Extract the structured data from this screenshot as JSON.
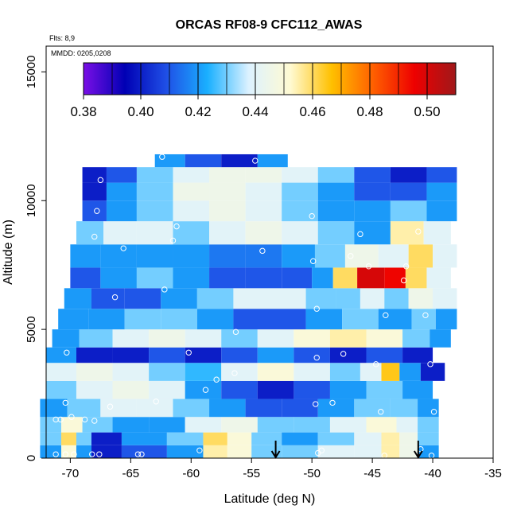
{
  "chart_data": {
    "type": "heatmap",
    "title": "ORCAS RF08-9 CFC112_AWAS",
    "xlabel": "Latitude (deg N)",
    "ylabel": "Altitude (m)",
    "notes": [
      "Flts: 8,9",
      "MMDD: 0205,0208"
    ],
    "xlim": [
      -72,
      -35
    ],
    "ylim": [
      0,
      16000
    ],
    "x_ticks": [
      -70,
      -65,
      -60,
      -55,
      -50,
      -45,
      -40,
      -35
    ],
    "x_tick_labels": [
      "-70",
      "-65",
      "-60",
      "-55",
      "-50",
      "-45",
      "-40",
      "-35"
    ],
    "y_ticks": [
      0,
      5000,
      10000,
      15000
    ],
    "y_tick_labels": [
      "0",
      "5000",
      "10000",
      "15000"
    ],
    "colorbar": {
      "min": 0.38,
      "max": 0.51,
      "ticks": [
        0.38,
        0.4,
        0.42,
        0.44,
        0.46,
        0.48,
        0.5
      ],
      "tick_labels": [
        "0.38",
        "0.40",
        "0.42",
        "0.44",
        "0.46",
        "0.48",
        "0.50"
      ],
      "colors": [
        "#7a0fe6",
        "#0000b4",
        "#1f4fe6",
        "#1ab0ff",
        "#ddf2ff",
        "#fffad2",
        "#ffc000",
        "#ff6000",
        "#ee0000",
        "#a0181a"
      ]
    },
    "arrows_lat": [
      -53,
      -41.2
    ],
    "heatmap_bands": [
      {
        "y0": 0,
        "y1": 500,
        "cells": [
          [
            -71.5,
            0.42
          ],
          [
            -70,
            0.45
          ],
          [
            -69,
            0.42
          ],
          [
            -67.5,
            0.4
          ],
          [
            -64,
            0.41
          ],
          [
            -60,
            0.42
          ],
          [
            -58,
            0.455
          ],
          [
            -56,
            0.45
          ],
          [
            -54,
            0.43
          ],
          [
            -51,
            0.43
          ],
          [
            -48,
            0.44
          ],
          [
            -45,
            0.44
          ],
          [
            -43.5,
            0.455
          ],
          [
            -42,
            0.445
          ],
          [
            -40.5,
            0.42
          ]
        ]
      },
      {
        "y0": 500,
        "y1": 1000,
        "cells": [
          [
            -71.5,
            0.43
          ],
          [
            -70,
            0.46
          ],
          [
            -69,
            0.43
          ],
          [
            -67.5,
            0.4
          ],
          [
            -64,
            0.42
          ],
          [
            -60,
            0.43
          ],
          [
            -58,
            0.46
          ],
          [
            -56,
            0.45
          ],
          [
            -54,
            0.43
          ],
          [
            -51,
            0.42
          ],
          [
            -48,
            0.43
          ],
          [
            -45,
            0.44
          ],
          [
            -43.5,
            0.455
          ],
          [
            -42,
            0.445
          ],
          [
            -40.5,
            0.43
          ]
        ]
      },
      {
        "y0": 1000,
        "y1": 1600,
        "cells": [
          [
            -71.5,
            0.43
          ],
          [
            -70,
            0.45
          ],
          [
            -68,
            0.43
          ],
          [
            -65,
            0.42
          ],
          [
            -62,
            0.42
          ],
          [
            -59,
            0.44
          ],
          [
            -56,
            0.445
          ],
          [
            -53,
            0.43
          ],
          [
            -50,
            0.43
          ],
          [
            -47,
            0.44
          ],
          [
            -44,
            0.45
          ],
          [
            -42,
            0.44
          ],
          [
            -40.5,
            0.43
          ]
        ]
      },
      {
        "y0": 1600,
        "y1": 2300,
        "cells": [
          [
            -71.5,
            0.42
          ],
          [
            -69,
            0.43
          ],
          [
            -66,
            0.44
          ],
          [
            -63,
            0.44
          ],
          [
            -60,
            0.43
          ],
          [
            -57,
            0.42
          ],
          [
            -54,
            0.41
          ],
          [
            -51,
            0.41
          ],
          [
            -48,
            0.42
          ],
          [
            -45,
            0.43
          ],
          [
            -42,
            0.43
          ],
          [
            -40.5,
            0.42
          ]
        ]
      },
      {
        "y0": 2300,
        "y1": 3000,
        "cells": [
          [
            -71,
            0.43
          ],
          [
            -68,
            0.44
          ],
          [
            -65,
            0.445
          ],
          [
            -62,
            0.44
          ],
          [
            -59,
            0.42
          ],
          [
            -56,
            0.41
          ],
          [
            -53,
            0.4
          ],
          [
            -50,
            0.41
          ],
          [
            -47,
            0.42
          ],
          [
            -44,
            0.43
          ],
          [
            -41,
            0.42
          ]
        ]
      },
      {
        "y0": 3000,
        "y1": 3700,
        "cells": [
          [
            -71,
            0.44
          ],
          [
            -68,
            0.445
          ],
          [
            -65,
            0.44
          ],
          [
            -62,
            0.43
          ],
          [
            -59,
            0.425
          ],
          [
            -56,
            0.44
          ],
          [
            -53,
            0.45
          ],
          [
            -50,
            0.44
          ],
          [
            -47,
            0.43
          ],
          [
            -45,
            0.44
          ],
          [
            -43.5,
            0.465
          ],
          [
            -42,
            0.42
          ],
          [
            -40,
            0.4
          ]
        ]
      },
      {
        "y0": 3700,
        "y1": 4300,
        "cells": [
          [
            -71,
            0.42
          ],
          [
            -68,
            0.4
          ],
          [
            -65,
            0.4
          ],
          [
            -62,
            0.41
          ],
          [
            -59,
            0.4
          ],
          [
            -56,
            0.41
          ],
          [
            -53,
            0.42
          ],
          [
            -50,
            0.41
          ],
          [
            -47,
            0.4
          ],
          [
            -44,
            0.41
          ],
          [
            -41,
            0.4
          ]
        ]
      },
      {
        "y0": 4300,
        "y1": 5000,
        "cells": [
          [
            -70.5,
            0.42
          ],
          [
            -68,
            0.43
          ],
          [
            -65,
            0.44
          ],
          [
            -62,
            0.445
          ],
          [
            -59,
            0.44
          ],
          [
            -56,
            0.43
          ],
          [
            -53,
            0.44
          ],
          [
            -50,
            0.45
          ],
          [
            -47,
            0.455
          ],
          [
            -44,
            0.45
          ],
          [
            -41,
            0.43
          ],
          [
            -39.5,
            0.42
          ]
        ]
      },
      {
        "y0": 5000,
        "y1": 5800,
        "cells": [
          [
            -70,
            0.42
          ],
          [
            -67,
            0.42
          ],
          [
            -64,
            0.43
          ],
          [
            -61,
            0.43
          ],
          [
            -58,
            0.42
          ],
          [
            -55,
            0.41
          ],
          [
            -52,
            0.41
          ],
          [
            -49,
            0.42
          ],
          [
            -46,
            0.43
          ],
          [
            -43,
            0.42
          ],
          [
            -40.5,
            0.43
          ],
          [
            -39,
            0.42
          ]
        ]
      },
      {
        "y0": 5800,
        "y1": 6600,
        "cells": [
          [
            -69.5,
            0.42
          ],
          [
            -67,
            0.41
          ],
          [
            -64,
            0.41
          ],
          [
            -61,
            0.42
          ],
          [
            -58,
            0.43
          ],
          [
            -55,
            0.44
          ],
          [
            -52,
            0.44
          ],
          [
            -49,
            0.43
          ],
          [
            -47,
            0.43
          ],
          [
            -45,
            0.44
          ],
          [
            -43,
            0.43
          ],
          [
            -41,
            0.445
          ],
          [
            -39,
            0.44
          ]
        ]
      },
      {
        "y0": 6600,
        "y1": 7400,
        "cells": [
          [
            -69,
            0.41
          ],
          [
            -66,
            0.42
          ],
          [
            -63,
            0.43
          ],
          [
            -60,
            0.42
          ],
          [
            -57,
            0.41
          ],
          [
            -54,
            0.41
          ],
          [
            -51,
            0.41
          ],
          [
            -49,
            0.42
          ],
          [
            -47.5,
            0.46
          ],
          [
            -45,
            0.5
          ],
          [
            -43,
            0.495
          ],
          [
            -41.5,
            0.46
          ],
          [
            -39.5,
            0.44
          ]
        ]
      },
      {
        "y0": 7400,
        "y1": 8300,
        "cells": [
          [
            -69,
            0.42
          ],
          [
            -66,
            0.42
          ],
          [
            -63,
            0.42
          ],
          [
            -60,
            0.42
          ],
          [
            -57,
            0.415
          ],
          [
            -54,
            0.415
          ],
          [
            -51,
            0.42
          ],
          [
            -48.5,
            0.43
          ],
          [
            -46,
            0.445
          ],
          [
            -43,
            0.44
          ],
          [
            -41,
            0.46
          ],
          [
            -39,
            0.44
          ]
        ]
      },
      {
        "y0": 8300,
        "y1": 9200,
        "cells": [
          [
            -68.5,
            0.43
          ],
          [
            -66,
            0.44
          ],
          [
            -63,
            0.44
          ],
          [
            -60,
            0.43
          ],
          [
            -57,
            0.44
          ],
          [
            -54,
            0.445
          ],
          [
            -51,
            0.44
          ],
          [
            -48,
            0.43
          ],
          [
            -45,
            0.42
          ],
          [
            -42,
            0.455
          ],
          [
            -39.5,
            0.44
          ]
        ]
      },
      {
        "y0": 9200,
        "y1": 10000,
        "cells": [
          [
            -68,
            0.41
          ],
          [
            -66,
            0.42
          ],
          [
            -63,
            0.43
          ],
          [
            -60,
            0.44
          ],
          [
            -57,
            0.445
          ],
          [
            -54,
            0.44
          ],
          [
            -51,
            0.43
          ],
          [
            -48,
            0.42
          ],
          [
            -45,
            0.42
          ],
          [
            -42,
            0.43
          ],
          [
            -39,
            0.42
          ]
        ]
      },
      {
        "y0": 10000,
        "y1": 10700,
        "cells": [
          [
            -68,
            0.4
          ],
          [
            -66,
            0.42
          ],
          [
            -63,
            0.43
          ],
          [
            -60,
            0.445
          ],
          [
            -57,
            0.445
          ],
          [
            -54,
            0.44
          ],
          [
            -51,
            0.43
          ],
          [
            -48,
            0.42
          ],
          [
            -45,
            0.41
          ],
          [
            -42,
            0.41
          ],
          [
            -39,
            0.42
          ]
        ]
      },
      {
        "y0": 10700,
        "y1": 11300,
        "cells": [
          [
            -68,
            0.4
          ],
          [
            -66,
            0.41
          ],
          [
            -63,
            0.43
          ],
          [
            -60,
            0.44
          ],
          [
            -57,
            0.445
          ],
          [
            -54,
            0.445
          ],
          [
            -51,
            0.44
          ],
          [
            -48,
            0.43
          ],
          [
            -45,
            0.41
          ],
          [
            -42,
            0.4
          ],
          [
            -39,
            0.41
          ]
        ]
      },
      {
        "y0": 11300,
        "y1": 11800,
        "cells": [
          [
            -62,
            0.42
          ],
          [
            -59,
            0.41
          ],
          [
            -56,
            0.4
          ],
          [
            -53,
            0.42
          ]
        ]
      }
    ],
    "sample_points": [
      {
        "x": -71.2,
        "y": 150
      },
      {
        "x": -70.4,
        "y": 150
      },
      {
        "x": -69.7,
        "y": 150
      },
      {
        "x": -68.2,
        "y": 150
      },
      {
        "x": -67.6,
        "y": 150
      },
      {
        "x": -64.4,
        "y": 150
      },
      {
        "x": -64.1,
        "y": 150
      },
      {
        "x": -59.3,
        "y": 300
      },
      {
        "x": -49.2,
        "y": 300
      },
      {
        "x": -49.5,
        "y": 200
      },
      {
        "x": -44.0,
        "y": 100
      },
      {
        "x": -41.0,
        "y": 350
      },
      {
        "x": -40.1,
        "y": 100
      },
      {
        "x": -71.2,
        "y": 1500
      },
      {
        "x": -70.8,
        "y": 1500
      },
      {
        "x": -69.9,
        "y": 1600
      },
      {
        "x": -68.8,
        "y": 1500
      },
      {
        "x": -68.0,
        "y": 1450
      },
      {
        "x": -70.4,
        "y": 2150
      },
      {
        "x": -66.7,
        "y": 2000
      },
      {
        "x": -62.9,
        "y": 2200
      },
      {
        "x": -49.7,
        "y": 2100
      },
      {
        "x": -48.3,
        "y": 2150
      },
      {
        "x": -44.3,
        "y": 1800
      },
      {
        "x": -39.9,
        "y": 1800
      },
      {
        "x": -58.8,
        "y": 2650
      },
      {
        "x": -57.9,
        "y": 3050
      },
      {
        "x": -56.4,
        "y": 3300
      },
      {
        "x": -70.3,
        "y": 4100
      },
      {
        "x": -60.2,
        "y": 4100
      },
      {
        "x": -49.6,
        "y": 3900
      },
      {
        "x": -47.4,
        "y": 4050
      },
      {
        "x": -44.7,
        "y": 3650
      },
      {
        "x": -40.2,
        "y": 3650
      },
      {
        "x": -56.3,
        "y": 4900
      },
      {
        "x": -49.6,
        "y": 5800
      },
      {
        "x": -43.9,
        "y": 5550
      },
      {
        "x": -40.6,
        "y": 5550
      },
      {
        "x": -66.3,
        "y": 6250
      },
      {
        "x": -62.2,
        "y": 6550
      },
      {
        "x": -42.4,
        "y": 6900
      },
      {
        "x": -45.3,
        "y": 7450
      },
      {
        "x": -42.2,
        "y": 7450
      },
      {
        "x": -49.9,
        "y": 7650
      },
      {
        "x": -46.8,
        "y": 7850
      },
      {
        "x": -54.1,
        "y": 8050
      },
      {
        "x": -65.6,
        "y": 8150
      },
      {
        "x": -61.5,
        "y": 8450
      },
      {
        "x": -68.0,
        "y": 8600
      },
      {
        "x": -46.0,
        "y": 8700
      },
      {
        "x": -41.2,
        "y": 8800
      },
      {
        "x": -61.2,
        "y": 9000
      },
      {
        "x": -67.8,
        "y": 9600
      },
      {
        "x": -67.5,
        "y": 10800
      },
      {
        "x": -62.4,
        "y": 11700
      },
      {
        "x": -54.7,
        "y": 11550
      },
      {
        "x": -50.0,
        "y": 9400
      }
    ]
  }
}
